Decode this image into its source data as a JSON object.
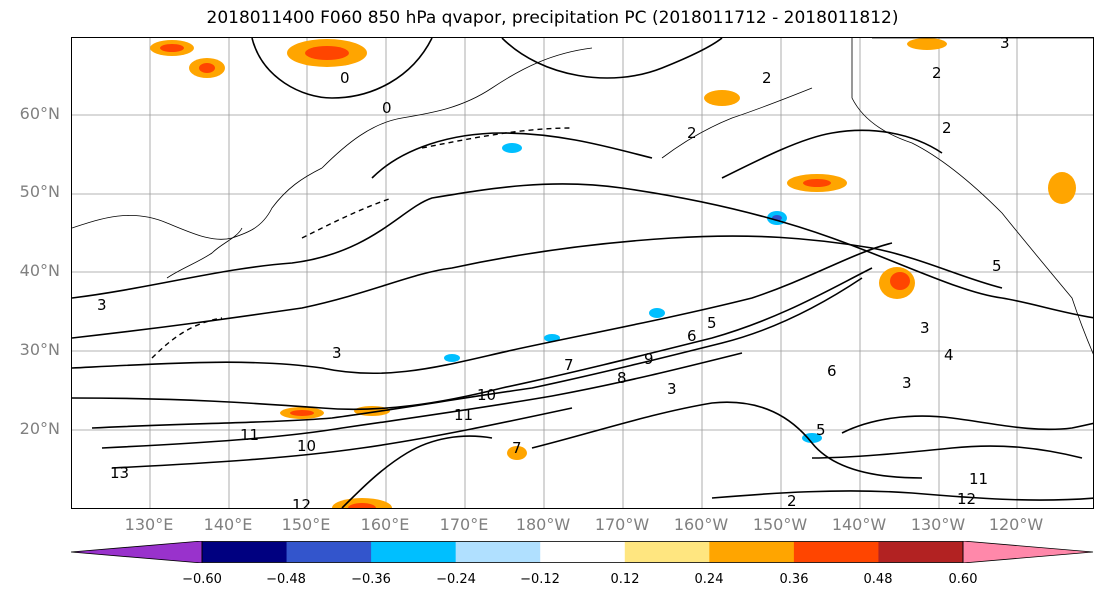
{
  "title": "2018011400 F060 850 hPa qvapor, precipitation PC (2018011712 - 2018011812)",
  "map": {
    "lat_labels": [
      "60°N",
      "50°N",
      "40°N",
      "30°N",
      "20°N"
    ],
    "lon_labels": [
      "130°E",
      "140°E",
      "150°E",
      "160°E",
      "170°E",
      "180°W",
      "170°W",
      "160°W",
      "150°W",
      "140°W",
      "130°W",
      "120°W"
    ],
    "contour_labels": [
      "0",
      "0",
      "2",
      "2",
      "2",
      "2",
      "3",
      "3",
      "3",
      "3",
      "3",
      "4",
      "5",
      "5",
      "6",
      "6",
      "7",
      "7",
      "8",
      "9",
      "10",
      "10",
      "11",
      "11",
      "11",
      "12",
      "12",
      "13",
      "3",
      "5",
      "2"
    ]
  },
  "colorbar": {
    "ticks": [
      "−0.60",
      "−0.48",
      "−0.36",
      "−0.24",
      "−0.12",
      "0.12",
      "0.24",
      "0.36",
      "0.48",
      "0.60"
    ],
    "colors": [
      "#9932cc",
      "#000080",
      "#3355cc",
      "#00bfff",
      "#b0e0ff",
      "#ffffff",
      "#ffe680",
      "#ffa500",
      "#ff4500",
      "#b22222",
      "#ff88aa"
    ]
  }
}
